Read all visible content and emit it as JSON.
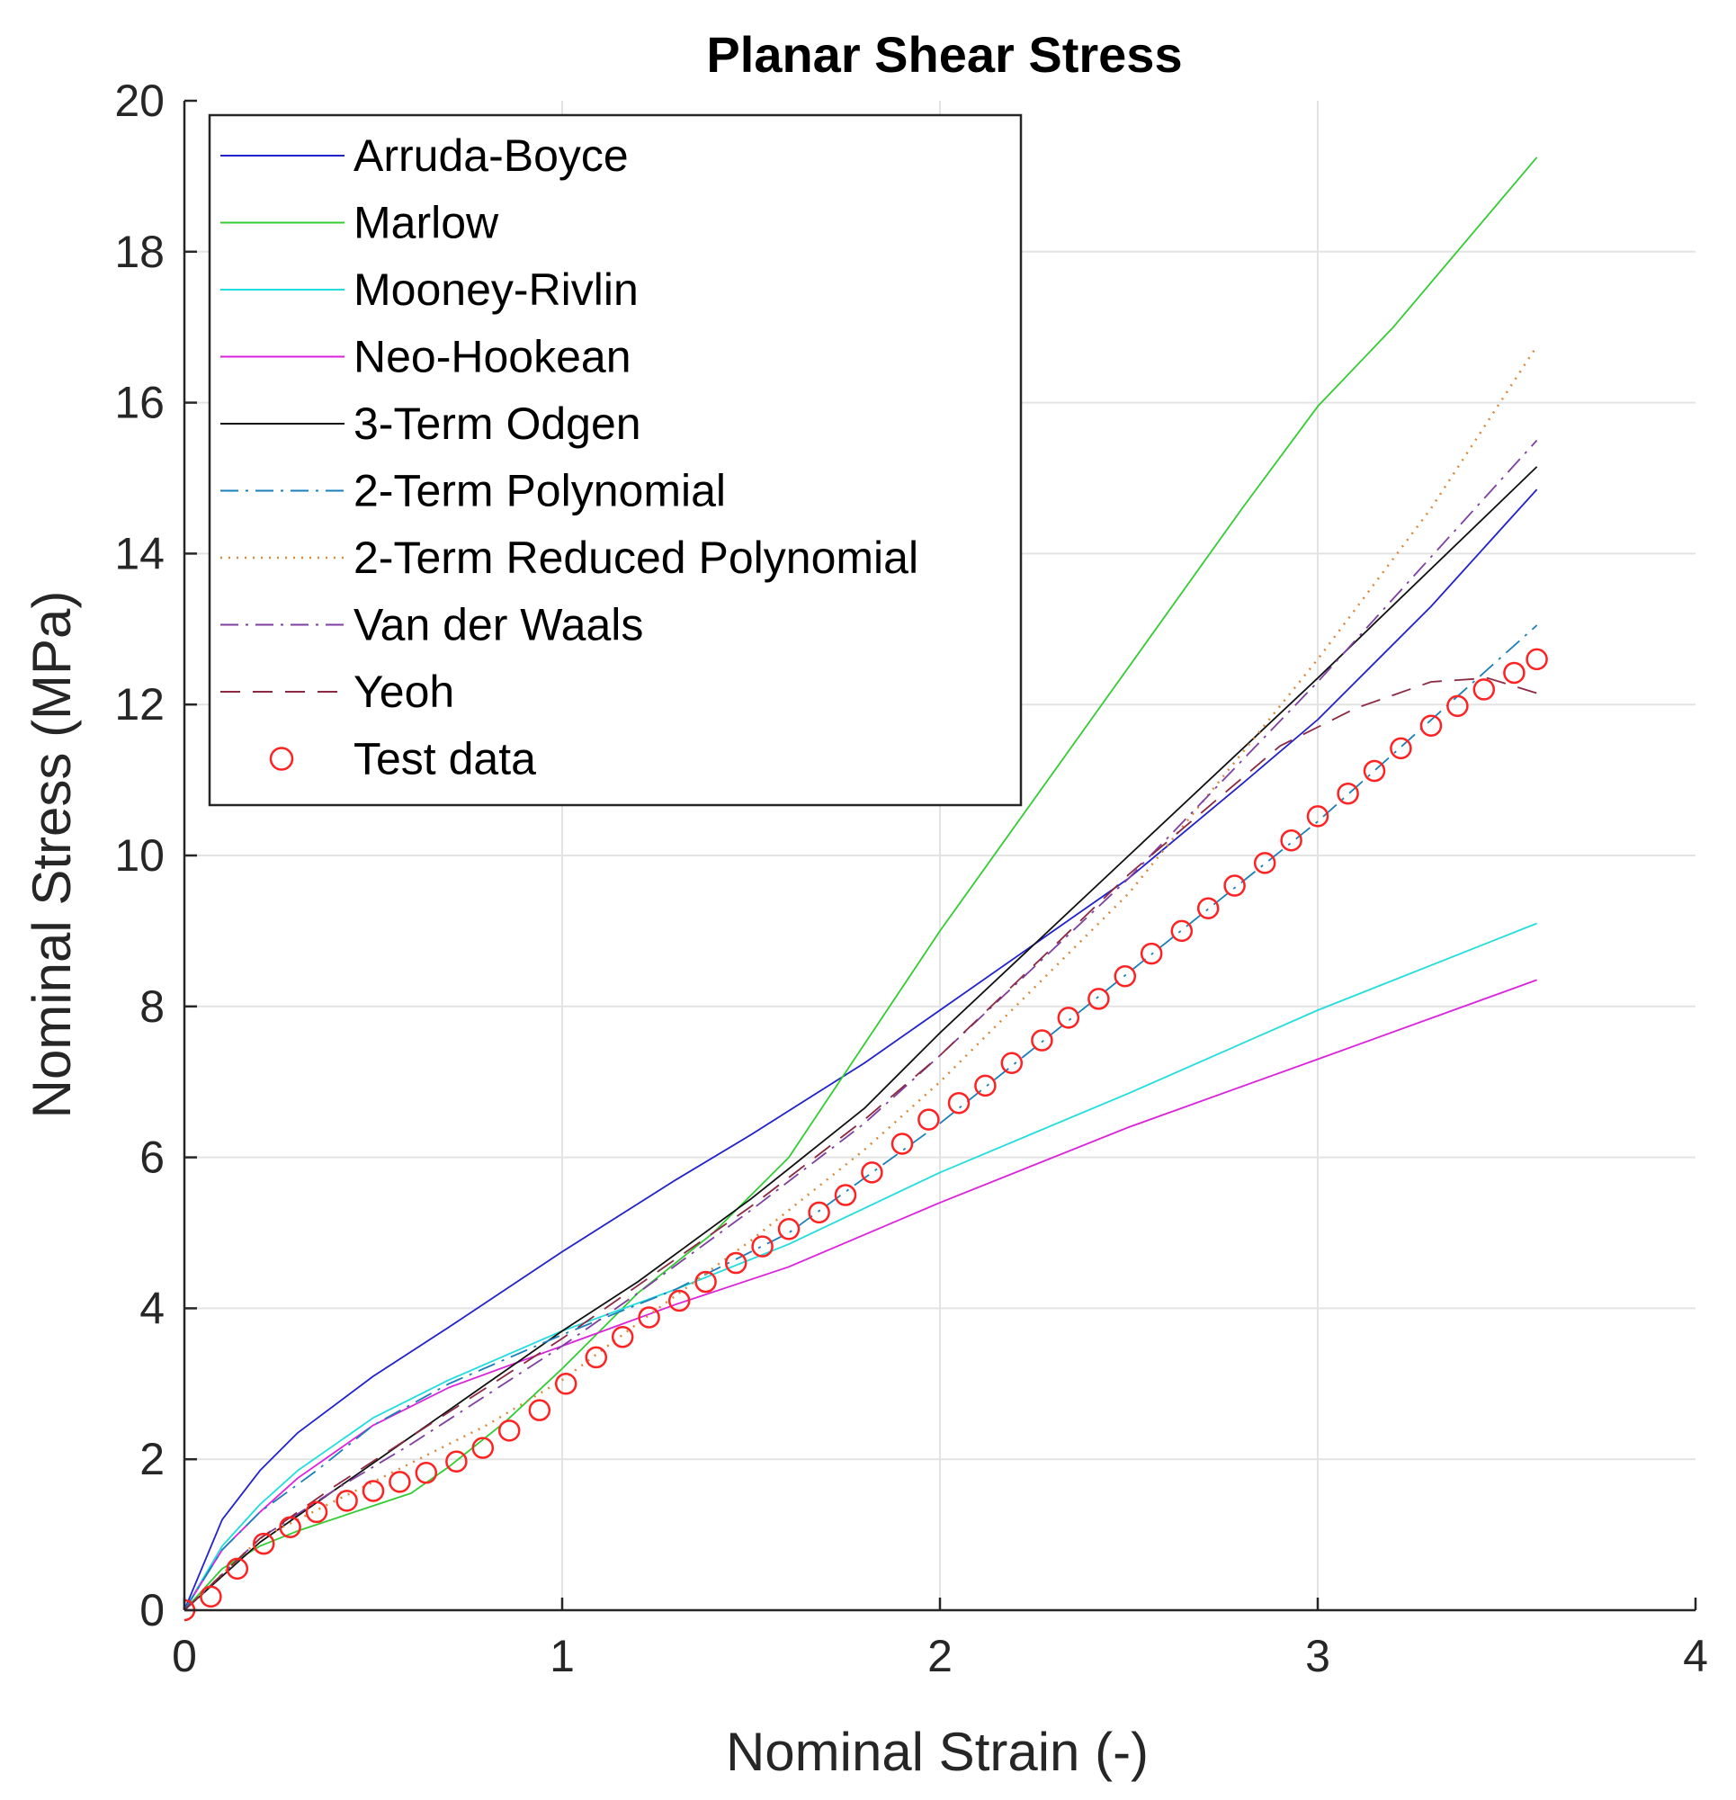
{
  "chart_data": {
    "type": "line",
    "title": "Planar Shear Stress",
    "xlabel": "Nominal Strain (-)",
    "ylabel": "Nominal Stress (MPa)",
    "xlim": [
      0,
      4
    ],
    "ylim": [
      0,
      20
    ],
    "xticks": [
      "0",
      "1",
      "2",
      "3",
      "4"
    ],
    "yticks": [
      "0",
      "2",
      "4",
      "6",
      "8",
      "10",
      "12",
      "14",
      "16",
      "18",
      "20"
    ],
    "grid": true,
    "legend_position": "top-left",
    "series": [
      {
        "name": "Arruda-Boyce",
        "color": "#2222cc",
        "style": "solid",
        "x": [
          0,
          0.1,
          0.2,
          0.3,
          0.5,
          0.7,
          1.0,
          1.3,
          1.5,
          1.8,
          2.0,
          2.5,
          2.8,
          3.0,
          3.3,
          3.58
        ],
        "y": [
          0,
          1.2,
          1.85,
          2.35,
          3.1,
          3.75,
          4.75,
          5.7,
          6.3,
          7.25,
          7.95,
          9.7,
          10.95,
          11.8,
          13.3,
          14.85
        ]
      },
      {
        "name": "Marlow",
        "color": "#33cc33",
        "style": "solid",
        "x": [
          0,
          0.1,
          0.2,
          0.3,
          0.45,
          0.6,
          0.7,
          0.85,
          1.0,
          1.2,
          1.4,
          1.6,
          1.8,
          2.0,
          2.4,
          2.8,
          3.0,
          3.2,
          3.58
        ],
        "y": [
          0,
          0.55,
          0.85,
          1.05,
          1.3,
          1.55,
          1.9,
          2.5,
          3.2,
          4.2,
          5.0,
          6.0,
          7.5,
          9.0,
          11.8,
          14.6,
          15.95,
          17.0,
          19.25
        ]
      },
      {
        "name": "Mooney-Rivlin",
        "color": "#22dddd",
        "style": "solid",
        "x": [
          0,
          0.1,
          0.2,
          0.3,
          0.5,
          0.7,
          1.0,
          1.3,
          1.6,
          2.0,
          2.5,
          3.0,
          3.58
        ],
        "y": [
          0,
          0.85,
          1.4,
          1.85,
          2.55,
          3.05,
          3.7,
          4.25,
          4.85,
          5.8,
          6.85,
          7.95,
          9.1
        ]
      },
      {
        "name": "Neo-Hookean",
        "color": "#dd22dd",
        "style": "solid",
        "x": [
          0,
          0.1,
          0.2,
          0.3,
          0.5,
          0.7,
          1.0,
          1.3,
          1.6,
          2.0,
          2.5,
          3.0,
          3.58
        ],
        "y": [
          0,
          0.8,
          1.3,
          1.75,
          2.45,
          2.95,
          3.5,
          4.05,
          4.55,
          5.4,
          6.4,
          7.3,
          8.35
        ]
      },
      {
        "name": "3-Term Odgen",
        "color": "#111111",
        "style": "solid",
        "x": [
          0,
          0.2,
          0.4,
          0.6,
          0.8,
          1.0,
          1.2,
          1.5,
          1.8,
          2.0,
          2.5,
          3.0,
          3.58
        ],
        "y": [
          0,
          0.9,
          1.6,
          2.3,
          3.0,
          3.7,
          4.35,
          5.45,
          6.65,
          7.65,
          10.0,
          12.35,
          15.15
        ]
      },
      {
        "name": "2-Term Polynomial",
        "color": "#1a7fb8",
        "style": "dashdot",
        "x": [
          0,
          0.1,
          0.2,
          0.35,
          0.5,
          0.7,
          1.0,
          1.3,
          1.6,
          2.0,
          2.5,
          3.0,
          3.58
        ],
        "y": [
          0,
          0.8,
          1.3,
          1.85,
          2.45,
          3.0,
          3.65,
          4.25,
          5.0,
          6.45,
          8.45,
          10.45,
          13.05
        ]
      },
      {
        "name": "2-Term Reduced Polynomial",
        "color": "#d8893a",
        "style": "dotted",
        "x": [
          0,
          0.2,
          0.4,
          0.6,
          0.8,
          1.0,
          1.2,
          1.5,
          1.8,
          2.0,
          2.5,
          3.0,
          3.3,
          3.58
        ],
        "y": [
          0,
          0.95,
          1.45,
          1.95,
          2.45,
          3.05,
          3.8,
          4.9,
          6.1,
          7.0,
          9.5,
          12.6,
          14.6,
          16.75
        ]
      },
      {
        "name": "Van der Waals",
        "color": "#7e3fa0",
        "style": "dashdot",
        "x": [
          0,
          0.2,
          0.4,
          0.6,
          0.8,
          1.0,
          1.2,
          1.5,
          1.8,
          2.0,
          2.5,
          3.0,
          3.58
        ],
        "y": [
          0,
          0.95,
          1.6,
          2.2,
          2.85,
          3.5,
          4.2,
          5.3,
          6.45,
          7.35,
          9.7,
          12.3,
          15.5
        ]
      },
      {
        "name": "Yeoh",
        "color": "#8b2a42",
        "style": "dashed",
        "x": [
          0,
          0.2,
          0.4,
          0.6,
          0.8,
          1.0,
          1.2,
          1.5,
          1.8,
          2.0,
          2.5,
          2.9,
          3.1,
          3.3,
          3.45,
          3.58
        ],
        "y": [
          0,
          0.95,
          1.65,
          2.3,
          2.95,
          3.6,
          4.3,
          5.35,
          6.5,
          7.35,
          9.75,
          11.45,
          11.95,
          12.3,
          12.35,
          12.15
        ]
      },
      {
        "name": "Test data",
        "color": "#ff2222",
        "style": "markers",
        "x": [
          0,
          0.07,
          0.14,
          0.21,
          0.28,
          0.35,
          0.43,
          0.5,
          0.57,
          0.64,
          0.72,
          0.79,
          0.86,
          0.94,
          1.01,
          1.09,
          1.16,
          1.23,
          1.31,
          1.38,
          1.46,
          1.53,
          1.6,
          1.68,
          1.75,
          1.82,
          1.9,
          1.97,
          2.05,
          2.12,
          2.19,
          2.27,
          2.34,
          2.42,
          2.49,
          2.56,
          2.64,
          2.71,
          2.78,
          2.86,
          2.93,
          3.0,
          3.08,
          3.15,
          3.22,
          3.3,
          3.37,
          3.44,
          3.52,
          3.58
        ],
        "y": [
          0,
          0.18,
          0.55,
          0.88,
          1.1,
          1.3,
          1.45,
          1.58,
          1.7,
          1.82,
          1.97,
          2.15,
          2.38,
          2.65,
          3.0,
          3.35,
          3.62,
          3.88,
          4.1,
          4.35,
          4.6,
          4.82,
          5.05,
          5.27,
          5.5,
          5.8,
          6.18,
          6.5,
          6.72,
          6.95,
          7.25,
          7.55,
          7.85,
          8.1,
          8.4,
          8.7,
          9.0,
          9.3,
          9.6,
          9.9,
          10.2,
          10.52,
          10.82,
          11.12,
          11.42,
          11.72,
          11.98,
          12.2,
          12.42,
          12.6
        ]
      }
    ]
  }
}
